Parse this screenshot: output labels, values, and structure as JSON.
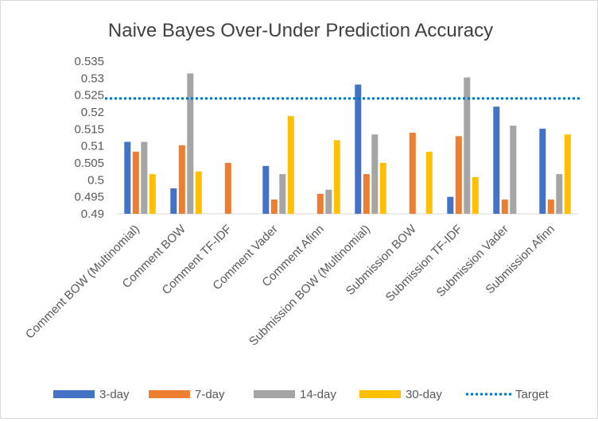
{
  "chart_data": {
    "type": "bar",
    "title": "Naive Bayes Over-Under Prediction Accuracy",
    "xlabel": "",
    "ylabel": "",
    "ylim": [
      0.49,
      0.535
    ],
    "ytick_step": 0.005,
    "yticks": [
      "0.49",
      "0.495",
      "0.5",
      "0.505",
      "0.51",
      "0.515",
      "0.52",
      "0.525",
      "0.53",
      "0.535"
    ],
    "grid": false,
    "legend_position": "bottom",
    "categories": [
      "Comment BOW (Multinomial)",
      "Comment BOW",
      "Comment TF-IDF",
      "Comment Vader",
      "Comment Afinn",
      "Submission BOW (Multinomial)",
      "Submission BOW",
      "Submission TF-IDF",
      "Submission Vader",
      "Submission Afinn"
    ],
    "series": [
      {
        "name": "3-day",
        "color": "#4472C4",
        "values": [
          0.5112,
          0.4975,
          null,
          0.5041,
          null,
          0.5281,
          null,
          0.495,
          0.5216,
          0.5151
        ]
      },
      {
        "name": "7-day",
        "color": "#ED7D31",
        "values": [
          0.5083,
          0.5102,
          0.505,
          0.4942,
          0.4959,
          0.5017,
          0.5139,
          0.5129,
          0.4942,
          0.4942
        ]
      },
      {
        "name": "14-day",
        "color": "#A5A5A5",
        "values": [
          0.5112,
          0.5314,
          null,
          0.5017,
          0.4971,
          0.5134,
          null,
          0.5302,
          0.516,
          0.5017
        ]
      },
      {
        "name": "30-day",
        "color": "#FFC000",
        "values": [
          0.5017,
          0.5025,
          null,
          0.5188,
          0.5117,
          0.505,
          0.5083,
          0.5008,
          null,
          0.5134
        ]
      }
    ],
    "target": {
      "name": "Target",
      "value": 0.524,
      "color": "#0070C0"
    }
  }
}
